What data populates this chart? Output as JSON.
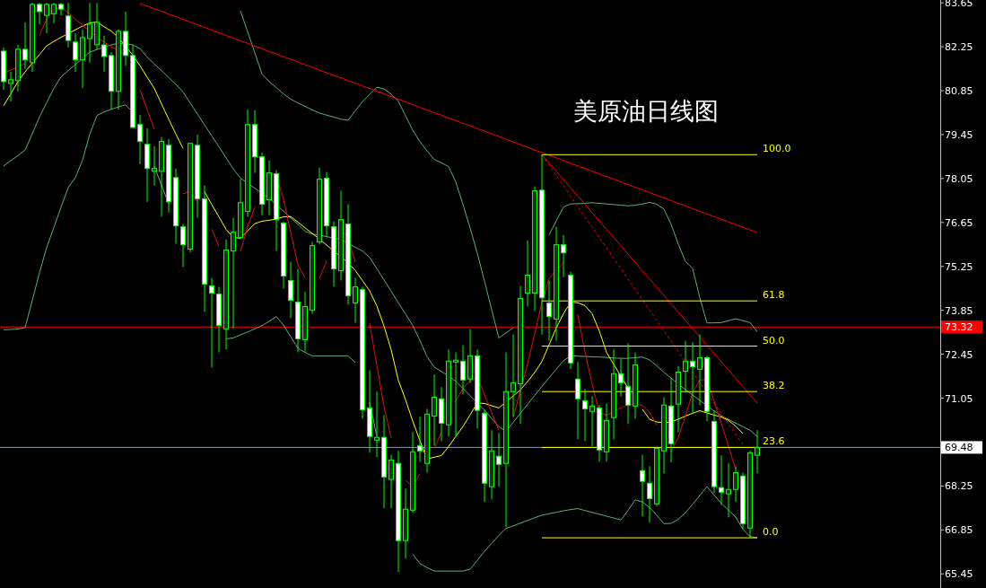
{
  "chart_data": {
    "type": "candlestick",
    "title": "美原油日线图",
    "color": "#00ff00",
    "tick_labels": "y",
    "categories": [
      null,
      null,
      null,
      null,
      null,
      null,
      null,
      null,
      null,
      null,
      null,
      null,
      null,
      null,
      null,
      null,
      null,
      null,
      null,
      null,
      null,
      null,
      null,
      null,
      null,
      null,
      null,
      null,
      null,
      null,
      null,
      null,
      null,
      null,
      null,
      null,
      null,
      null,
      null,
      null,
      null,
      null,
      null,
      null,
      null,
      null,
      null,
      null,
      null,
      null,
      null,
      null,
      null,
      null,
      null,
      null,
      null,
      null,
      null,
      null,
      null,
      null,
      null,
      null,
      null,
      null,
      null,
      null,
      null,
      null,
      null,
      null,
      null,
      null,
      null,
      null,
      null,
      null,
      null,
      null,
      null,
      null,
      null,
      null,
      null,
      null,
      null,
      null,
      null,
      null,
      null,
      null,
      null,
      null,
      null,
      null,
      null,
      null,
      null,
      null,
      null,
      null,
      null,
      null,
      null,
      null
    ],
    "ohlc": [
      [
        82.11,
        82.23,
        80.88,
        81.14
      ],
      [
        81.08,
        81.45,
        80.51,
        81.2
      ],
      [
        81.17,
        82.31,
        80.83,
        82.17
      ],
      [
        82.17,
        83.03,
        81.54,
        81.83
      ],
      [
        81.74,
        83.65,
        81.45,
        83.6
      ],
      [
        83.6,
        83.65,
        82.97,
        83.37
      ],
      [
        83.25,
        83.65,
        82.68,
        83.6
      ],
      [
        83.3,
        83.65,
        83.0,
        83.6
      ],
      [
        83.6,
        83.65,
        83.25,
        83.45
      ],
      [
        83.23,
        83.65,
        82.23,
        82.45
      ],
      [
        82.4,
        82.68,
        81.45,
        81.83
      ],
      [
        81.83,
        82.8,
        80.94,
        82.54
      ],
      [
        82.51,
        83.65,
        81.74,
        82.97
      ],
      [
        82.31,
        83.65,
        82.17,
        83.03
      ],
      [
        82.31,
        82.6,
        81.45,
        81.94
      ],
      [
        81.97,
        82.08,
        80.25,
        80.83
      ],
      [
        80.83,
        82.8,
        80.25,
        82.74
      ],
      [
        82.74,
        83.37,
        81.65,
        81.97
      ],
      [
        81.97,
        82.31,
        79.65,
        79.68
      ],
      [
        79.77,
        80.08,
        78.51,
        79.23
      ],
      [
        79.14,
        79.65,
        77.31,
        78.37
      ],
      [
        78.28,
        79.08,
        77.83,
        78.37
      ],
      [
        78.28,
        79.37,
        76.83,
        79.23
      ],
      [
        79.11,
        79.31,
        76.97,
        77.31
      ],
      [
        78.08,
        78.37,
        75.97,
        76.54
      ],
      [
        76.51,
        76.6,
        75.23,
        75.94
      ],
      [
        75.8,
        79.2,
        75.7,
        79.17
      ],
      [
        79.11,
        79.45,
        76.8,
        77.4
      ],
      [
        77.4,
        77.83,
        73.8,
        74.68
      ],
      [
        74.63,
        74.88,
        72.03,
        74.4
      ],
      [
        74.37,
        74.6,
        72.51,
        73.37
      ],
      [
        73.26,
        76.11,
        72.6,
        75.77
      ],
      [
        75.74,
        76.8,
        73.26,
        76.34
      ],
      [
        76.17,
        78.03,
        76.11,
        77.28
      ],
      [
        77.0,
        80.25,
        76.83,
        79.77
      ],
      [
        79.77,
        80.23,
        78.23,
        78.74
      ],
      [
        78.74,
        78.88,
        76.88,
        77.23
      ],
      [
        77.37,
        78.63,
        76.88,
        78.23
      ],
      [
        78.2,
        78.31,
        75.74,
        76.74
      ],
      [
        76.63,
        76.68,
        74.54,
        74.94
      ],
      [
        74.8,
        75.4,
        73.6,
        74.17
      ],
      [
        74.11,
        75.17,
        72.51,
        72.94
      ],
      [
        72.91,
        74.45,
        72.54,
        73.97
      ],
      [
        73.85,
        76.03,
        73.74,
        75.91
      ],
      [
        76.03,
        78.4,
        75.95,
        78.03
      ],
      [
        78.06,
        78.26,
        76.17,
        76.54
      ],
      [
        76.51,
        76.68,
        74.6,
        75.17
      ],
      [
        75.11,
        77.66,
        74.8,
        76.74
      ],
      [
        76.6,
        77.23,
        74.03,
        74.31
      ],
      [
        74.08,
        74.88,
        73.45,
        74.6
      ],
      [
        74.51,
        74.6,
        70.4,
        70.68
      ],
      [
        70.74,
        71.94,
        69.31,
        69.83
      ],
      [
        69.71,
        71.26,
        69.17,
        69.8
      ],
      [
        69.8,
        70.51,
        67.54,
        68.54
      ],
      [
        68.46,
        69.25,
        67.54,
        69.08
      ],
      [
        68.97,
        69.37,
        65.51,
        66.51
      ],
      [
        66.51,
        68.17,
        65.94,
        67.51
      ],
      [
        67.48,
        69.97,
        67.4,
        69.34
      ],
      [
        69.54,
        70.46,
        69.03,
        69.37
      ],
      [
        68.97,
        70.71,
        68.68,
        70.54
      ],
      [
        70.48,
        71.8,
        69.54,
        71.08
      ],
      [
        71.03,
        71.4,
        69.68,
        70.25
      ],
      [
        70.2,
        72.6,
        69.83,
        72.23
      ],
      [
        72.2,
        72.51,
        69.83,
        72.26
      ],
      [
        72.23,
        72.74,
        71.17,
        71.63
      ],
      [
        71.66,
        73.26,
        71.54,
        72.4
      ],
      [
        72.4,
        72.6,
        70.08,
        70.66
      ],
      [
        70.57,
        70.68,
        67.74,
        68.34
      ],
      [
        68.23,
        70.03,
        67.83,
        69.37
      ],
      [
        69.2,
        69.94,
        68.23,
        68.94
      ],
      [
        68.97,
        72.51,
        66.94,
        71.26
      ],
      [
        71.26,
        73.08,
        70.46,
        71.54
      ],
      [
        71.51,
        74.63,
        70.23,
        74.23
      ],
      [
        74.4,
        76.08,
        73.97,
        74.97
      ],
      [
        74.4,
        77.8,
        73.83,
        77.66
      ],
      [
        77.68,
        78.81,
        73.08,
        74.25
      ],
      [
        74.08,
        74.8,
        72.88,
        73.65
      ],
      [
        73.57,
        76.51,
        72.88,
        75.94
      ],
      [
        75.94,
        76.25,
        74.91,
        75.68
      ],
      [
        74.97,
        75.08,
        71.97,
        72.17
      ],
      [
        71.66,
        72.2,
        69.74,
        71.03
      ],
      [
        70.97,
        71.34,
        69.68,
        70.71
      ],
      [
        70.63,
        71.11,
        69.51,
        70.8
      ],
      [
        70.74,
        70.83,
        69.03,
        69.4
      ],
      [
        69.34,
        70.88,
        69.03,
        70.34
      ],
      [
        70.43,
        72.6,
        69.74,
        71.83
      ],
      [
        71.83,
        72.31,
        71.11,
        71.54
      ],
      [
        71.43,
        72.8,
        70.23,
        70.83
      ],
      [
        70.8,
        72.51,
        70.4,
        72.11
      ],
      [
        68.74,
        69.25,
        67.28,
        68.4
      ],
      [
        68.34,
        68.88,
        67.08,
        67.85
      ],
      [
        67.68,
        69.5,
        67.6,
        69.45
      ],
      [
        69.37,
        71.08,
        68.65,
        70.83
      ],
      [
        70.8,
        71.68,
        69.0,
        69.6
      ],
      [
        70.86,
        72.08,
        69.97,
        71.88
      ],
      [
        71.91,
        72.88,
        71.23,
        72.23
      ],
      [
        72.23,
        72.83,
        70.54,
        72.05
      ],
      [
        71.97,
        73.08,
        70.83,
        72.34
      ],
      [
        72.34,
        72.4,
        70.31,
        70.63
      ],
      [
        70.31,
        70.66,
        68.03,
        68.23
      ],
      [
        68.2,
        69.23,
        67.65,
        68.05
      ],
      [
        68.0,
        68.97,
        67.25,
        68.14
      ],
      [
        68.14,
        68.88,
        67.74,
        68.68
      ],
      [
        68.57,
        68.68,
        66.88,
        67.05
      ],
      [
        66.91,
        69.37,
        66.6,
        69.31
      ],
      [
        69.23,
        70.03,
        68.65,
        69.48
      ]
    ],
    "series": [
      {
        "type": "line",
        "color": "#5fae6f",
        "values": [
          null,
          null,
          null,
          null,
          null,
          null,
          null,
          null,
          null,
          null,
          null,
          null,
          null,
          null,
          null,
          null,
          null,
          null,
          null,
          null,
          null,
          null,
          null,
          null,
          null,
          null,
          null,
          null,
          null,
          null,
          null,
          null,
          null,
          83.39,
          82.73,
          82.06,
          81.38,
          81.14,
          80.95,
          80.75,
          80.58,
          80.46,
          80.35,
          80.24,
          80.14,
          80.07,
          80.01,
          79.94,
          79.91,
          80.21,
          80.5,
          80.73,
          80.96,
          80.91,
          80.74,
          80.51,
          80.05,
          79.59,
          79.23,
          78.93,
          78.66,
          78.55,
          78.43,
          77.94,
          77.23,
          76.47,
          75.67,
          74.78,
          73.87,
          72.97,
          73.13,
          73.29,
          null,
          null,
          null,
          null,
          76.25,
          76.7,
          77.14,
          77.24,
          77.25,
          77.26,
          77.28,
          77.26,
          77.24,
          77.22,
          77.2,
          77.18,
          77.2,
          77.24,
          77.29,
          77.23,
          77.08,
          76.59,
          75.96,
          75.41,
          75.18,
          74.25,
          73.45,
          73.45,
          73.46,
          73.52,
          73.58,
          73.52,
          73.46,
          73.17
        ]
      },
      {
        "type": "line",
        "color": "#5fae6f",
        "values": [
          78.45,
          78.62,
          78.78,
          78.96,
          79.48,
          80.01,
          80.47,
          80.92,
          81.29,
          81.49,
          81.68,
          81.88,
          82.08,
          82.16,
          82.24,
          82.31,
          82.36,
          82.34,
          82.31,
          82.19,
          81.92,
          81.7,
          81.49,
          81.27,
          81.05,
          80.81,
          80.46,
          80.11,
          79.76,
          79.41,
          79.06,
          78.71,
          78.36,
          78.06,
          77.9,
          77.74,
          77.58,
          77.42,
          77.22,
          77.01,
          76.8,
          76.59,
          76.37,
          76.28,
          76.24,
          76.2,
          76.15,
          76.11,
          75.98,
          75.86,
          75.74,
          75.54,
          75.18,
          74.82,
          74.46,
          74.09,
          73.73,
          73.37,
          72.89,
          72.37,
          72.04,
          71.9,
          71.76,
          71.59,
          71.36,
          71.13,
          70.9,
          70.67,
          70.4,
          70.14,
          69.99,
          70.28,
          70.57,
          70.85,
          71.14,
          71.42,
          71.7,
          71.97,
          72.24,
          72.4,
          72.39,
          72.38,
          72.37,
          72.36,
          72.35,
          72.33,
          72.32,
          72.32,
          72.34,
          72.36,
          72.27,
          72.08,
          71.88,
          71.69,
          71.5,
          71.32,
          71.15,
          70.98,
          70.81,
          70.64,
          70.49,
          70.37,
          70.26,
          70.14,
          70.03,
          69.83
        ]
      },
      {
        "type": "line",
        "color": "#5fae6f",
        "values": [
          73.23,
          73.24,
          73.25,
          73.3,
          74.17,
          75.05,
          75.85,
          76.49,
          77.13,
          77.76,
          78.08,
          78.64,
          79.46,
          80.06,
          80.17,
          80.26,
          80.33,
          80.4,
          80.16,
          null,
          null,
          78.44,
          77.84,
          77.24,
          null,
          null,
          null,
          null,
          null,
          null,
          null,
          72.94,
          72.97,
          73.07,
          73.16,
          73.26,
          73.36,
          73.5,
          73.65,
          73.38,
          73.01,
          72.64,
          72.51,
          72.4,
          72.4,
          72.4,
          72.4,
          72.4,
          72.4,
          72.18,
          null,
          70.93,
          69.83,
          null,
          null,
          null,
          null,
          66.08,
          65.78,
          65.65,
          65.54,
          65.54,
          65.54,
          65.54,
          65.54,
          65.6,
          65.88,
          66.17,
          66.42,
          66.68,
          66.9,
          66.98,
          67.07,
          67.15,
          67.24,
          67.32,
          67.37,
          67.41,
          67.46,
          67.5,
          67.53,
          67.47,
          67.41,
          67.35,
          67.29,
          67.23,
          67.17,
          67.47,
          67.81,
          67.74,
          67.57,
          67.32,
          67.05,
          67.06,
          67.19,
          67.4,
          67.67,
          67.95,
          68.23,
          67.96,
          67.7,
          67.48,
          67.26,
          66.88,
          66.64,
          66.6
        ]
      },
      {
        "type": "line",
        "color": "#ffff00",
        "values": [
          80.37,
          80.75,
          81.14,
          81.45,
          81.73,
          82.0,
          82.28,
          82.42,
          82.55,
          82.67,
          82.79,
          82.91,
          83.01,
          83.04,
          82.89,
          82.75,
          82.54,
          82.27,
          81.98,
          81.65,
          81.28,
          80.92,
          80.43,
          79.94,
          79.47,
          79.01,
          null,
          null,
          77.63,
          77.22,
          76.83,
          76.43,
          76.17,
          76.15,
          76.38,
          76.61,
          76.69,
          76.72,
          76.76,
          76.83,
          76.84,
          76.66,
          76.48,
          76.3,
          76.12,
          75.93,
          75.74,
          75.56,
          75.36,
          75.12,
          74.8,
          74.47,
          73.99,
          73.35,
          72.59,
          71.62,
          71.0,
          70.32,
          69.7,
          69.11,
          69.17,
          69.22,
          69.51,
          69.83,
          70.15,
          70.52,
          70.9,
          70.88,
          70.81,
          70.74,
          70.93,
          71.12,
          71.31,
          71.58,
          71.87,
          72.22,
          72.75,
          73.29,
          73.74,
          74.11,
          74.09,
          74.0,
          73.74,
          73.19,
          72.51,
          72.13,
          71.75,
          71.37,
          null,
          70.7,
          70.38,
          70.29,
          70.27,
          70.29,
          70.38,
          70.48,
          70.57,
          70.65,
          70.58,
          70.51,
          70.45,
          70.34,
          70.16,
          69.92,
          null,
          null
        ]
      },
      {
        "type": "line",
        "color": "#dd1111",
        "values": [
          81.4,
          81.51,
          81.61,
          81.72,
          null,
          82.62,
          83.12,
          83.43,
          83.52,
          83.33,
          83.13,
          82.94,
          82.74,
          82.55,
          82.4,
          82.25,
          82.11,
          81.97,
          null,
          80.88,
          80.25,
          79.62,
          null,
          null,
          null,
          77.56,
          77.65,
          77.31,
          null,
          76.45,
          75.88,
          null,
          null,
          75.73,
          76.51,
          77.14,
          null,
          78.23,
          78.13,
          77.39,
          76.34,
          75.3,
          74.89,
          null,
          74.86,
          75.43,
          null,
          76.4,
          76.16,
          75.38,
          null,
          73.43,
          72.1,
          70.78,
          69.78,
          null,
          68.43,
          68.23,
          68.64,
          null,
          69.46,
          69.94,
          null,
          70.96,
          71.36,
          71.62,
          71.72,
          71.16,
          70.59,
          70.03,
          null,
          70.43,
          71.28,
          72.14,
          73.11,
          74.1,
          74.87,
          75.12,
          75.37,
          null,
          73.72,
          72.53,
          71.49,
          70.6,
          70.51,
          70.62,
          70.74,
          70.85,
          70.86,
          70.82,
          70.6,
          70.19,
          null,
          69.34,
          69.8,
          70.49,
          71.23,
          71.62,
          71.66,
          70.95,
          70.25,
          69.52,
          68.77,
          null,
          null,
          null
        ]
      },
      {
        "type": "line",
        "color": "#ff0000",
        "values": [
          null,
          null,
          null,
          null,
          null,
          null,
          null,
          null,
          null,
          null,
          null,
          null,
          null,
          null,
          null,
          null,
          null,
          null,
          null,
          83.63,
          83.55,
          83.46,
          83.38,
          83.29,
          83.21,
          83.12,
          83.04,
          82.95,
          82.87,
          82.78,
          82.7,
          82.61,
          82.53,
          82.44,
          82.36,
          82.27,
          82.19,
          82.1,
          82.02,
          81.93,
          81.85,
          81.77,
          81.68,
          81.6,
          81.51,
          81.42,
          81.34,
          81.26,
          81.17,
          81.09,
          81.0,
          80.92,
          80.83,
          80.75,
          80.66,
          80.58,
          80.49,
          80.41,
          80.32,
          80.24,
          80.15,
          80.07,
          79.98,
          79.9,
          79.81,
          79.73,
          79.64,
          79.56,
          79.47,
          79.39,
          79.3,
          79.22,
          79.13,
          79.05,
          78.96,
          78.88,
          78.79,
          78.71,
          78.62,
          78.54,
          78.45,
          78.37,
          78.28,
          78.2,
          78.11,
          78.03,
          77.94,
          77.86,
          77.77,
          77.69,
          77.6,
          77.52,
          77.43,
          77.35,
          77.26,
          77.18,
          77.09,
          77.01,
          76.92,
          76.84,
          76.75,
          76.67,
          76.58,
          76.5,
          76.41,
          76.33
        ]
      },
      {
        "type": "line",
        "color": "#ff0000",
        "values": [
          null,
          null,
          null,
          null,
          null,
          null,
          null,
          null,
          null,
          null,
          null,
          null,
          null,
          null,
          null,
          null,
          null,
          null,
          null,
          null,
          null,
          null,
          null,
          null,
          null,
          null,
          null,
          null,
          null,
          null,
          null,
          null,
          null,
          null,
          null,
          null,
          null,
          null,
          null,
          null,
          null,
          null,
          null,
          null,
          null,
          null,
          null,
          null,
          null,
          null,
          null,
          null,
          null,
          null,
          null,
          null,
          null,
          null,
          null,
          null,
          null,
          null,
          null,
          null,
          null,
          null,
          null,
          null,
          null,
          null,
          null,
          null,
          null,
          null,
          null,
          78.81,
          78.55,
          78.28,
          78.02,
          77.75,
          77.49,
          77.23,
          76.96,
          76.7,
          76.43,
          76.17,
          75.91,
          75.64,
          75.38,
          75.11,
          74.85,
          74.59,
          74.32,
          74.06,
          73.79,
          73.53,
          73.27,
          73.0,
          72.74,
          72.47,
          72.21,
          71.95,
          71.68,
          71.42,
          71.15,
          70.89
        ]
      },
      {
        "type": "line",
        "color": "#ff0000",
        "line_style": "dashed",
        "values": [
          null,
          null,
          null,
          null,
          null,
          null,
          null,
          null,
          null,
          null,
          null,
          null,
          null,
          null,
          null,
          null,
          null,
          null,
          null,
          null,
          null,
          null,
          null,
          null,
          null,
          null,
          null,
          null,
          null,
          null,
          null,
          null,
          null,
          null,
          null,
          null,
          null,
          null,
          null,
          null,
          null,
          null,
          null,
          null,
          null,
          null,
          null,
          null,
          null,
          null,
          null,
          null,
          null,
          null,
          null,
          null,
          null,
          null,
          null,
          null,
          null,
          null,
          null,
          null,
          null,
          null,
          null,
          null,
          null,
          null,
          null,
          null,
          null,
          null,
          null,
          78.81,
          78.48,
          78.15,
          77.82,
          77.49,
          77.16,
          76.83,
          76.5,
          76.17,
          75.84,
          75.51,
          75.18,
          74.85,
          74.52,
          74.19,
          73.86,
          73.53,
          73.2,
          72.87,
          72.54,
          72.21,
          71.88,
          71.55,
          71.22,
          70.89,
          70.56,
          70.23,
          69.9,
          69.57,
          null,
          null
        ]
      },
      {
        "type": "line",
        "color": "#ffff00",
        "name": "100.0",
        "values": [
          null,
          null,
          null,
          null,
          null,
          null,
          null,
          null,
          null,
          null,
          null,
          null,
          null,
          null,
          null,
          null,
          null,
          null,
          null,
          null,
          null,
          null,
          null,
          null,
          null,
          null,
          null,
          null,
          null,
          null,
          null,
          null,
          null,
          null,
          null,
          null,
          null,
          null,
          null,
          null,
          null,
          null,
          null,
          null,
          null,
          null,
          null,
          null,
          null,
          null,
          null,
          null,
          null,
          null,
          null,
          null,
          null,
          null,
          null,
          null,
          null,
          null,
          null,
          null,
          null,
          null,
          null,
          null,
          null,
          null,
          null,
          null,
          null,
          null,
          null,
          78.81,
          78.81,
          78.81,
          78.81,
          78.81,
          78.81,
          78.81,
          78.81,
          78.81,
          78.81,
          78.81,
          78.81,
          78.81,
          78.81,
          78.81,
          78.81,
          78.81,
          78.81,
          78.81,
          78.81,
          78.81,
          78.81,
          78.81,
          78.81,
          78.81,
          78.81,
          78.81,
          78.81,
          78.81,
          78.81,
          78.81
        ]
      },
      {
        "type": "line",
        "color": "#ffff00",
        "name": "61.8",
        "values": [
          null,
          null,
          null,
          null,
          null,
          null,
          null,
          null,
          null,
          null,
          null,
          null,
          null,
          null,
          null,
          null,
          null,
          null,
          null,
          null,
          null,
          null,
          null,
          null,
          null,
          null,
          null,
          null,
          null,
          null,
          null,
          null,
          null,
          null,
          null,
          null,
          null,
          null,
          null,
          null,
          null,
          null,
          null,
          null,
          null,
          null,
          null,
          null,
          null,
          null,
          null,
          null,
          null,
          null,
          null,
          null,
          null,
          null,
          null,
          null,
          null,
          null,
          null,
          null,
          null,
          null,
          null,
          null,
          null,
          null,
          null,
          null,
          null,
          null,
          null,
          74.15,
          74.15,
          74.15,
          74.15,
          74.15,
          74.15,
          74.15,
          74.15,
          74.15,
          74.15,
          74.15,
          74.15,
          74.15,
          74.15,
          74.15,
          74.15,
          74.15,
          74.15,
          74.15,
          74.15,
          74.15,
          74.15,
          74.15,
          74.15,
          74.15,
          74.15,
          74.15,
          74.15,
          74.15,
          74.15,
          74.15
        ]
      },
      {
        "type": "line",
        "color": "#ffff00",
        "name": "50.0",
        "values": [
          null,
          null,
          null,
          null,
          null,
          null,
          null,
          null,
          null,
          null,
          null,
          null,
          null,
          null,
          null,
          null,
          null,
          null,
          null,
          null,
          null,
          null,
          null,
          null,
          null,
          null,
          null,
          null,
          null,
          null,
          null,
          null,
          null,
          null,
          null,
          null,
          null,
          null,
          null,
          null,
          null,
          null,
          null,
          null,
          null,
          null,
          null,
          null,
          null,
          null,
          null,
          null,
          null,
          null,
          null,
          null,
          null,
          null,
          null,
          null,
          null,
          null,
          null,
          null,
          null,
          null,
          null,
          null,
          null,
          null,
          null,
          null,
          null,
          null,
          null,
          72.71,
          72.71,
          72.71,
          72.71,
          72.71,
          72.71,
          72.71,
          72.71,
          72.71,
          72.71,
          72.71,
          72.71,
          72.71,
          72.71,
          72.71,
          72.71,
          72.71,
          72.71,
          72.71,
          72.71,
          72.71,
          72.71,
          72.71,
          72.71,
          72.71,
          72.71,
          72.71,
          72.71,
          72.71,
          72.71,
          72.71
        ]
      },
      {
        "type": "line",
        "color": "#ffff00",
        "name": "38.2",
        "values": [
          null,
          null,
          null,
          null,
          null,
          null,
          null,
          null,
          null,
          null,
          null,
          null,
          null,
          null,
          null,
          null,
          null,
          null,
          null,
          null,
          null,
          null,
          null,
          null,
          null,
          null,
          null,
          null,
          null,
          null,
          null,
          null,
          null,
          null,
          null,
          null,
          null,
          null,
          null,
          null,
          null,
          null,
          null,
          null,
          null,
          null,
          null,
          null,
          null,
          null,
          null,
          null,
          null,
          null,
          null,
          null,
          null,
          null,
          null,
          null,
          null,
          null,
          null,
          null,
          null,
          null,
          null,
          null,
          null,
          null,
          null,
          null,
          null,
          null,
          null,
          71.26,
          71.26,
          71.26,
          71.26,
          71.26,
          71.26,
          71.26,
          71.26,
          71.26,
          71.26,
          71.26,
          71.26,
          71.26,
          71.26,
          71.26,
          71.26,
          71.26,
          71.26,
          71.26,
          71.26,
          71.26,
          71.26,
          71.26,
          71.26,
          71.26,
          71.26,
          71.26,
          71.26,
          71.26,
          71.26,
          71.26
        ]
      },
      {
        "type": "line",
        "color": "#ffff00",
        "name": "23.6",
        "values": [
          null,
          null,
          null,
          null,
          null,
          null,
          null,
          null,
          null,
          null,
          null,
          null,
          null,
          null,
          null,
          null,
          null,
          null,
          null,
          null,
          null,
          null,
          null,
          null,
          null,
          null,
          null,
          null,
          null,
          null,
          null,
          null,
          null,
          null,
          null,
          null,
          null,
          null,
          null,
          null,
          null,
          null,
          null,
          null,
          null,
          null,
          null,
          null,
          null,
          null,
          null,
          null,
          null,
          null,
          null,
          null,
          null,
          null,
          null,
          null,
          null,
          null,
          null,
          null,
          null,
          null,
          null,
          null,
          null,
          null,
          null,
          null,
          null,
          null,
          null,
          69.48,
          69.48,
          69.48,
          69.48,
          69.48,
          69.48,
          69.48,
          69.48,
          69.48,
          69.48,
          69.48,
          69.48,
          69.48,
          69.48,
          69.48,
          69.48,
          69.48,
          69.48,
          69.48,
          69.48,
          69.48,
          69.48,
          69.48,
          69.48,
          69.48,
          69.48,
          69.48,
          69.48,
          69.48,
          69.48,
          69.48
        ]
      },
      {
        "type": "line",
        "color": "#ffff00",
        "name": "0.0",
        "values": [
          null,
          null,
          null,
          null,
          null,
          null,
          null,
          null,
          null,
          null,
          null,
          null,
          null,
          null,
          null,
          null,
          null,
          null,
          null,
          null,
          null,
          null,
          null,
          null,
          null,
          null,
          null,
          null,
          null,
          null,
          null,
          null,
          null,
          null,
          null,
          null,
          null,
          null,
          null,
          null,
          null,
          null,
          null,
          null,
          null,
          null,
          null,
          null,
          null,
          null,
          null,
          null,
          null,
          null,
          null,
          null,
          null,
          null,
          null,
          null,
          null,
          null,
          null,
          null,
          null,
          null,
          null,
          null,
          null,
          null,
          null,
          null,
          null,
          null,
          null,
          66.6,
          66.6,
          66.6,
          66.6,
          66.6,
          66.6,
          66.6,
          66.6,
          66.6,
          66.6,
          66.6,
          66.6,
          66.6,
          66.6,
          66.6,
          66.6,
          66.6,
          66.6,
          66.6,
          66.6,
          66.6,
          66.6,
          66.6,
          66.6,
          66.6,
          66.6,
          66.6,
          66.6,
          66.6,
          66.6,
          66.6
        ]
      }
    ],
    "ref_lines": [
      {
        "axis": "y",
        "value": 73.32,
        "label": "73.32",
        "color": "#ff0000"
      },
      {
        "axis": "y",
        "value": 69.48,
        "label": "69.48",
        "color": "#8a9aaa"
      }
    ],
    "ylim": [
      65.0,
      83.74
    ],
    "yticks": [
      65.45,
      66.85,
      68.25,
      71.05,
      72.45,
      73.85,
      75.25,
      76.65,
      78.05,
      79.45,
      80.85,
      82.25,
      83.65
    ]
  }
}
